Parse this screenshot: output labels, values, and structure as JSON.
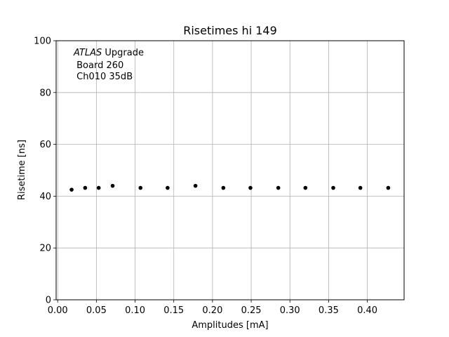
{
  "chart_data": {
    "type": "scatter",
    "title": "Risetimes hi 149",
    "xlabel": "Amplitudes [mA]",
    "ylabel": "Risetime [ns]",
    "xlim": [
      -0.002,
      0.4475
    ],
    "ylim": [
      0,
      100
    ],
    "xticks": [
      "0.00",
      "0.05",
      "0.10",
      "0.15",
      "0.20",
      "0.25",
      "0.30",
      "0.35",
      "0.40"
    ],
    "xtick_values": [
      0,
      0.05,
      0.1,
      0.15,
      0.2,
      0.25,
      0.3,
      0.35,
      0.4
    ],
    "yticks": [
      "0",
      "20",
      "40",
      "60",
      "80",
      "100"
    ],
    "ytick_values": [
      0,
      20,
      40,
      60,
      80,
      100
    ],
    "grid": true,
    "marker_color": "#000000",
    "annotation": {
      "line1_italic": "ATLAS",
      "line1_rest": " Upgrade",
      "line2": " Board 260",
      "line3": " Ch010 35dB",
      "placement": "top-left"
    },
    "series": [
      {
        "x": [
          0.018,
          0.0355,
          0.053,
          0.071,
          0.107,
          0.142,
          0.178,
          0.214,
          0.249,
          0.285,
          0.32,
          0.356,
          0.391,
          0.427
        ],
        "y": [
          42.5,
          43.2,
          43.2,
          44.0,
          43.2,
          43.2,
          44.0,
          43.2,
          43.2,
          43.2,
          43.2,
          43.2,
          43.2,
          43.2
        ]
      }
    ]
  }
}
